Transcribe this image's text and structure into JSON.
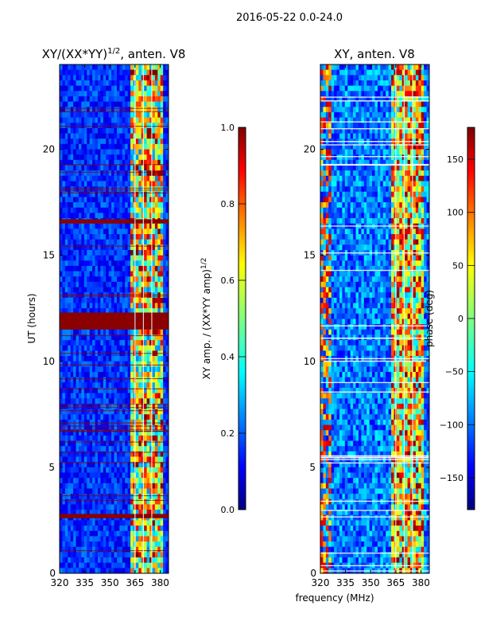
{
  "figure_title": "2016-05-22 0.0-24.0",
  "colors": {
    "jet": [
      "#00007f",
      "#0000ff",
      "#007fff",
      "#00ffff",
      "#7fff7f",
      "#ffff00",
      "#ff7f00",
      "#ff0000",
      "#7f0000"
    ],
    "line_overlay": "#ffffff",
    "flag_band": "#8b0000"
  },
  "chart_data": [
    {
      "type": "heatmap",
      "panel": "left",
      "title_main": "XY/(XX*YY)",
      "title_sup": "1/2",
      "title_tail": ", anten. V8",
      "xlabel": "",
      "ylabel": "UT (hours)",
      "xlim": [
        320,
        385
      ],
      "ylim": [
        0,
        24
      ],
      "xticks": [
        "320",
        "335",
        "350",
        "365",
        "380"
      ],
      "xtick_values": [
        320,
        335,
        350,
        365,
        380
      ],
      "yticks": [
        "0",
        "5",
        "10",
        "15",
        "20"
      ],
      "ytick_values": [
        0,
        5,
        10,
        15,
        20
      ],
      "hot_band_mhz": [
        362,
        382
      ],
      "saturated_rows_hours": [
        [
          11.5,
          12.3
        ],
        [
          16.5,
          16.7
        ],
        [
          2.6,
          2.8
        ]
      ],
      "colorbar": {
        "label_main": "XY amp. / (XX*YY amp)",
        "label_sup": "1/2",
        "range": [
          0.0,
          1.0
        ],
        "ticks": [
          "0.0",
          "0.2",
          "0.4",
          "0.6",
          "0.8",
          "1.0"
        ],
        "tick_values": [
          0.0,
          0.2,
          0.4,
          0.6,
          0.8,
          1.0
        ]
      }
    },
    {
      "type": "heatmap",
      "panel": "right",
      "title": "XY, anten. V8",
      "xlabel": "frequency (MHz)",
      "ylabel": "",
      "xlim": [
        320,
        385
      ],
      "ylim": [
        0,
        24
      ],
      "xticks": [
        "320",
        "335",
        "350",
        "365",
        "380"
      ],
      "xtick_values": [
        320,
        335,
        350,
        365,
        380
      ],
      "yticks": [
        "0",
        "5",
        "10",
        "15",
        "20"
      ],
      "ytick_values": [
        0,
        5,
        10,
        15,
        20
      ],
      "hot_band_mhz": [
        362,
        382
      ],
      "colorbar": {
        "label": "phase (deg)",
        "range": [
          -180,
          180
        ],
        "ticks": [
          "−150",
          "−100",
          "−50",
          "0",
          "50",
          "100",
          "150"
        ],
        "tick_values": [
          -150,
          -100,
          -50,
          0,
          50,
          100,
          150
        ]
      }
    }
  ]
}
